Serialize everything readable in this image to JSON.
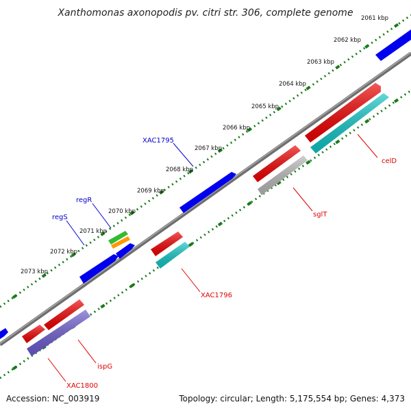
{
  "title": "Xanthomonas axonopodis pv. citri str. 306, complete genome",
  "footer": {
    "accession": "Accession: NC_003919",
    "summary": "Topology: circular; Length: 5,175,554 bp; Genes: 4,373"
  },
  "colors": {
    "backbone": "#888888",
    "tick_marks": "#1a7a1a",
    "red": "#ee0000",
    "blue": "#0000ee",
    "cyan": "#11c4c4",
    "gray": "#b8b8b8",
    "purple": "#6a5acd",
    "green": "#33bb33",
    "orange": "#ff9900",
    "label_blue": "#0000cc",
    "label_red": "#dd0000"
  },
  "tick_labels": [
    {
      "text": "2061 kbp"
    },
    {
      "text": "2062 kbp"
    },
    {
      "text": "2063 kbp"
    },
    {
      "text": "2064 kbp"
    },
    {
      "text": "2065 kbp"
    },
    {
      "text": "2066 kbp"
    },
    {
      "text": "2067 kbp"
    },
    {
      "text": "2068 kbp"
    },
    {
      "text": "2069 kbp"
    },
    {
      "text": "2070 kbp"
    },
    {
      "text": "2071 kbp"
    },
    {
      "text": "2072 kbp"
    },
    {
      "text": "2073 kbp"
    }
  ],
  "gene_labels": [
    {
      "text": "XAC1795",
      "color": "label_blue"
    },
    {
      "text": "regR",
      "color": "label_blue"
    },
    {
      "text": "regS",
      "color": "label_blue"
    },
    {
      "text": "celD",
      "color": "label_red"
    },
    {
      "text": "sglT",
      "color": "label_red"
    },
    {
      "text": "XAC1796",
      "color": "label_red"
    },
    {
      "text": "ispG",
      "color": "label_red"
    },
    {
      "text": "XAC1800",
      "color": "label_red"
    }
  ]
}
